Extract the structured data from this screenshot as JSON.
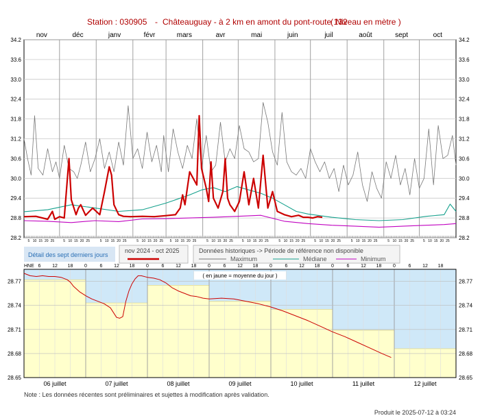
{
  "header": {
    "station_label": "Station : 030905",
    "separator": "-",
    "location": "Châteauguay - à 2 km en amont du pont-route 132",
    "unit_label": "( Niveau en mètre )"
  },
  "legend": {
    "detail_label": "Détail des sept derniers jours",
    "period_label": "nov 2024 - oct 2025",
    "historic_label": "Données historiques -> Période de référence non disponible",
    "max_label": "Maximum",
    "median_label": "Médiane",
    "min_label": "Minimum"
  },
  "detail": {
    "hne_label": "HNE",
    "note_label": "( en jaune = moyenne du jour )",
    "hour_ticks": [
      "6",
      "12",
      "18",
      "0",
      "6",
      "12",
      "18",
      "0",
      "6",
      "12",
      "18",
      "0",
      "6",
      "12",
      "18",
      "0",
      "6",
      "12",
      "18",
      "0",
      "6",
      "12",
      "18",
      "0",
      "6",
      "12",
      "18"
    ],
    "day_labels": [
      "06 juillet",
      "07 juillet",
      "08 juillet",
      "09 juillet",
      "10 juillet",
      "11 juillet",
      "12 juillet"
    ]
  },
  "footer": {
    "note": "Note : Les données récentes sont préliminaires et sujettes à modification après validation.",
    "produced": "Produit le 2025-07-12 à 03:24"
  },
  "colors": {
    "current": "#cc0000",
    "maximum": "#777777",
    "median": "#14a08c",
    "minimum": "#c000c0",
    "daily_mean": "#ffffcc",
    "above_mean": "#cfe8f8",
    "title": "#b00000"
  },
  "chart_data": [
    {
      "type": "line",
      "months": [
        "nov",
        "déc",
        "janv",
        "févr",
        "mars",
        "avr",
        "mai",
        "juin",
        "juil",
        "août",
        "sept",
        "oct"
      ],
      "day_ticks": [
        "5",
        "10",
        "15",
        "20",
        "25"
      ],
      "y_ticks": [
        "28.2",
        "28.8",
        "29.4",
        "30.0",
        "30.6",
        "31.2",
        "31.8",
        "32.4",
        "33.0",
        "33.6",
        "34.2"
      ],
      "ylim": [
        28.2,
        34.2
      ],
      "series": [
        {
          "name": "Maximum",
          "x": [
            0,
            3,
            6,
            9,
            12,
            16,
            20,
            24,
            27,
            30,
            34,
            38,
            42,
            45,
            48,
            52,
            56,
            60,
            64,
            68,
            72,
            76,
            80,
            84,
            88,
            92,
            96,
            100,
            104,
            108,
            112,
            116,
            118,
            122,
            126,
            130,
            134,
            138,
            142,
            146,
            150,
            154,
            158,
            162,
            166,
            170,
            174,
            178,
            182,
            186,
            190,
            194,
            198,
            202,
            206,
            210,
            214,
            218,
            222,
            226,
            230,
            234,
            238,
            242,
            246,
            250,
            254,
            258,
            262,
            266,
            270,
            274,
            278,
            282,
            286,
            290,
            294,
            298,
            302,
            306,
            310,
            314,
            318,
            322,
            326,
            330,
            334,
            338,
            342,
            346,
            350,
            354,
            358,
            362,
            365
          ],
          "y": [
            31.2,
            30.6,
            30.1,
            31.9,
            30.3,
            30.1,
            30.9,
            30.2,
            30.5,
            30.0,
            31.0,
            30.3,
            30.2,
            30.0,
            30.4,
            31.1,
            30.2,
            30.6,
            31.2,
            30.3,
            30.8,
            30.2,
            31.1,
            30.4,
            32.2,
            30.6,
            30.9,
            30.3,
            31.4,
            30.5,
            31.0,
            30.2,
            31.3,
            30.2,
            31.5,
            30.8,
            30.3,
            31.0,
            30.6,
            31.8,
            30.3,
            31.3,
            30.2,
            30.4,
            31.7,
            30.5,
            30.9,
            30.6,
            31.6,
            30.9,
            30.8,
            30.5,
            30.6,
            32.3,
            31.7,
            30.8,
            30.4,
            32.0,
            30.5,
            30.2,
            30.1,
            30.3,
            30.0,
            30.9,
            30.5,
            30.2,
            30.5,
            30.0,
            30.3,
            29.6,
            30.4,
            29.8,
            30.1,
            30.8,
            29.8,
            29.3,
            30.2,
            29.7,
            29.4,
            30.5,
            30.0,
            30.7,
            29.8,
            30.3,
            29.5,
            30.6,
            29.7,
            30.0,
            31.5,
            29.8,
            31.6,
            30.6,
            30.7,
            31.3,
            30.4
          ]
        },
        {
          "name": "Médiane",
          "x": [
            0,
            20,
            40,
            60,
            80,
            100,
            120,
            140,
            150,
            160,
            170,
            180,
            190,
            200,
            210,
            220,
            230,
            240,
            260,
            280,
            300,
            320,
            340,
            355,
            360,
            365
          ],
          "y": [
            28.99,
            29.05,
            29.2,
            29.1,
            29.0,
            29.05,
            29.25,
            29.5,
            29.65,
            29.72,
            29.6,
            29.75,
            29.65,
            29.55,
            29.4,
            29.2,
            29.0,
            28.92,
            28.82,
            28.75,
            28.72,
            28.75,
            28.85,
            28.9,
            29.22,
            29.0
          ]
        },
        {
          "name": "Minimum",
          "x": [
            0,
            20,
            40,
            60,
            80,
            100,
            120,
            140,
            160,
            180,
            200,
            220,
            240,
            260,
            280,
            300,
            320,
            340,
            355,
            365
          ],
          "y": [
            28.72,
            28.7,
            28.66,
            28.72,
            28.69,
            28.77,
            28.78,
            28.8,
            28.82,
            28.85,
            28.88,
            28.7,
            28.63,
            28.58,
            28.55,
            28.52,
            28.55,
            28.58,
            28.6,
            28.63
          ]
        },
        {
          "name": "nov 2024 - oct 2025",
          "x": [
            0,
            10,
            20,
            24,
            26,
            30,
            34,
            38,
            40,
            44,
            46,
            48,
            52,
            58,
            64,
            68,
            72,
            74,
            76,
            80,
            84,
            90,
            100,
            110,
            120,
            128,
            132,
            134,
            136,
            140,
            146,
            148,
            150,
            154,
            156,
            158,
            160,
            164,
            168,
            170,
            172,
            174,
            176,
            178,
            182,
            186,
            190,
            194,
            198,
            202,
            206,
            210,
            214,
            220,
            226,
            232,
            236,
            240,
            244,
            248,
            252
          ],
          "y": [
            28.84,
            28.85,
            28.76,
            29.0,
            28.76,
            28.84,
            28.8,
            30.6,
            29.35,
            28.9,
            29.1,
            29.2,
            28.88,
            29.1,
            28.9,
            29.6,
            30.35,
            30.1,
            29.2,
            28.9,
            28.85,
            28.84,
            28.85,
            28.84,
            28.87,
            28.9,
            29.1,
            29.5,
            29.2,
            30.2,
            29.8,
            31.9,
            30.3,
            29.7,
            29.3,
            30.5,
            29.4,
            29.1,
            29.6,
            30.6,
            29.4,
            29.2,
            29.1,
            29.0,
            29.3,
            30.2,
            29.2,
            30.0,
            29.1,
            30.7,
            29.1,
            29.6,
            29.0,
            28.9,
            28.84,
            28.88,
            28.82,
            28.82,
            28.8,
            28.84,
            28.82
          ]
        }
      ]
    },
    {
      "type": "line",
      "y_ticks": [
        "28.65",
        "28.68",
        "28.71",
        "28.74",
        "28.77"
      ],
      "ylim": [
        28.65,
        28.785
      ],
      "daily_means": [
        28.772,
        28.743,
        28.765,
        28.745,
        28.735,
        28.709,
        28.686
      ],
      "series": [
        {
          "name": "nov 2024 - oct 2025",
          "x": [
            0,
            0.1,
            0.2,
            0.3,
            0.4,
            0.5,
            0.6,
            0.7,
            0.75,
            0.8,
            0.9,
            1.0,
            1.1,
            1.2,
            1.3,
            1.4,
            1.5,
            1.55,
            1.6,
            1.65,
            1.7,
            1.75,
            1.8,
            1.85,
            1.9,
            2.0,
            2.1,
            2.2,
            2.3,
            2.4,
            2.5,
            2.6,
            2.7,
            2.8,
            2.9,
            3.0,
            3.2,
            3.4,
            3.6,
            3.8,
            4.0,
            4.2,
            4.4,
            4.6,
            4.8,
            5.0,
            5.2,
            5.4,
            5.6,
            5.8,
            5.95
          ],
          "y": [
            28.78,
            28.777,
            28.776,
            28.777,
            28.776,
            28.776,
            28.775,
            28.772,
            28.769,
            28.764,
            28.757,
            28.752,
            28.748,
            28.745,
            28.742,
            28.737,
            28.725,
            28.724,
            28.726,
            28.745,
            28.758,
            28.767,
            28.773,
            28.777,
            28.777,
            28.775,
            28.774,
            28.772,
            28.768,
            28.762,
            28.758,
            28.755,
            28.752,
            28.751,
            28.749,
            28.748,
            28.749,
            28.748,
            28.745,
            28.742,
            28.738,
            28.733,
            28.727,
            28.721,
            28.714,
            28.707,
            28.701,
            28.694,
            28.687,
            28.68,
            28.675
          ]
        }
      ]
    }
  ]
}
